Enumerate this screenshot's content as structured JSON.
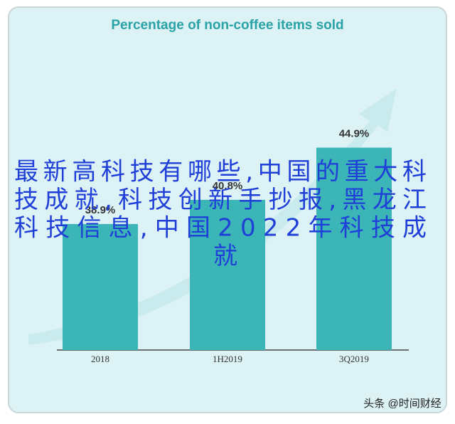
{
  "chart_data": {
    "type": "bar",
    "title": "Percentage of non-coffee items sold",
    "categories": [
      "2018",
      "1H2019",
      "3Q2019"
    ],
    "values": [
      38.9,
      40.8,
      44.9
    ],
    "value_labels": [
      "38.9%",
      "40.8%",
      "44.9%"
    ],
    "color": "#3bb5b6",
    "ylim": [
      29,
      47
    ]
  },
  "overlay": {
    "lines": [
      "最新高科技有哪些,中国的重大科",
      "技成就,科技创新手抄报,黑龙江",
      "科技信息,中国2022年科技成",
      "就"
    ]
  },
  "watermark": "头条 @时间财经"
}
